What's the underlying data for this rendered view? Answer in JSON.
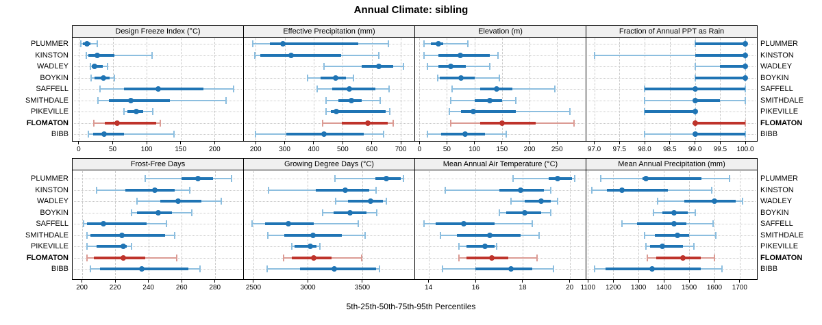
{
  "title": "Annual Climate: sibling",
  "caption": "5th-25th-50th-75th-95th Percentiles",
  "series_labels": [
    "PLUMMER",
    "KINSTON",
    "WADLEY",
    "BOYKIN",
    "SAFFELL",
    "SMITHDALE",
    "PIKEVILLE",
    "FLOMATON",
    "BIBB"
  ],
  "highlight_series": "FLOMATON",
  "percentile_labels": [
    "5th",
    "25th",
    "50th",
    "75th",
    "95th"
  ],
  "colors": {
    "series": "#1F74B4",
    "series_light": "#8CBEDF",
    "highlight": "#BE332B",
    "highlight_light": "#DB9B94",
    "header_bg": "#F0F0F0",
    "grid": "#C9C9C9",
    "border": "#000000",
    "text": "#000000"
  },
  "chart_data": {
    "type": "dot-whisker",
    "layout": "2 rows x 4 columns lattice, free x scales, 9 shared series rows, grid on, legend none",
    "panels": [
      {
        "title": "Design Freeze Index (°C)",
        "xlim": [
          -10,
          242
        ],
        "tick_values": [
          0,
          50,
          100,
          150,
          200
        ],
        "tick_labels": [
          "0",
          "50",
          "100",
          "150",
          "200"
        ],
        "percentiles": [
          [
            3,
            6,
            12,
            17,
            27
          ],
          [
            11,
            14,
            27,
            53,
            108
          ],
          [
            17,
            19,
            23,
            35,
            42
          ],
          [
            18,
            23,
            36,
            45,
            52
          ],
          [
            31,
            67,
            117,
            184,
            228
          ],
          [
            28,
            44,
            77,
            134,
            217
          ],
          [
            67,
            72,
            85,
            95,
            109
          ],
          [
            22,
            38,
            57,
            114,
            120
          ],
          [
            14,
            21,
            37,
            67,
            140
          ]
        ]
      },
      {
        "title": "Effective Precipitation (mm)",
        "xlim": [
          157,
          747
        ],
        "tick_values": [
          200,
          300,
          400,
          500,
          600,
          700
        ],
        "tick_labels": [
          "200",
          "300",
          "400",
          "500",
          "600",
          "700"
        ],
        "percentiles": [
          [
            190,
            249,
            294,
            553,
            658
          ],
          [
            196,
            216,
            322,
            494,
            624
          ],
          [
            435,
            565,
            624,
            675,
            710
          ],
          [
            380,
            424,
            475,
            510,
            537
          ],
          [
            412,
            463,
            522,
            612,
            659
          ],
          [
            443,
            486,
            530,
            565,
            628
          ],
          [
            443,
            459,
            479,
            647,
            663
          ],
          [
            431,
            498,
            587,
            655,
            675
          ],
          [
            200,
            306,
            435,
            573,
            640
          ]
        ]
      },
      {
        "title": "Elevation (m)",
        "xlim": [
          -9,
          302
        ],
        "tick_values": [
          0,
          50,
          100,
          150,
          200,
          250
        ],
        "tick_labels": [
          "0",
          "50",
          "100",
          "150",
          "200",
          "250"
        ],
        "percentiles": [
          [
            8,
            21,
            34,
            43,
            88
          ],
          [
            8,
            34,
            74,
            128,
            143
          ],
          [
            15,
            34,
            57,
            84,
            128
          ],
          [
            33,
            37,
            75,
            101,
            145
          ],
          [
            59,
            111,
            140,
            169,
            246
          ],
          [
            57,
            101,
            128,
            150,
            175
          ],
          [
            55,
            76,
            98,
            175,
            273
          ],
          [
            57,
            111,
            150,
            211,
            281
          ],
          [
            15,
            39,
            83,
            119,
            158
          ]
        ]
      },
      {
        "title": "Fraction of Annual PPT as Rain",
        "xlim": [
          96.83,
          100.23
        ],
        "tick_values": [
          97.0,
          97.5,
          98.0,
          98.5,
          99.0,
          99.5,
          100.0
        ],
        "tick_labels": [
          "97.0",
          "97.5",
          "98.0",
          "98.5",
          "99.0",
          "99.5",
          "100.0"
        ],
        "percentiles": [
          [
            99.0,
            99.0,
            100.0,
            100.0,
            100.0
          ],
          [
            97.0,
            99.0,
            100.0,
            100.0,
            100.0
          ],
          [
            99.0,
            99.5,
            100.0,
            100.0,
            100.0
          ],
          [
            99.0,
            99.0,
            100.0,
            100.0,
            100.0
          ],
          [
            98.0,
            98.0,
            99.0,
            100.0,
            100.0
          ],
          [
            98.0,
            99.0,
            99.0,
            99.5,
            100.0
          ],
          [
            98.0,
            98.0,
            99.0,
            99.0,
            99.0
          ],
          [
            99.0,
            99.0,
            99.0,
            100.0,
            100.0
          ],
          [
            98.0,
            99.0,
            99.0,
            100.0,
            100.0
          ]
        ]
      },
      {
        "title": "Frost-Free Days",
        "xlim": [
          194,
          297
        ],
        "tick_values": [
          200,
          220,
          240,
          260,
          280
        ],
        "tick_labels": [
          "200",
          "220",
          "240",
          "260",
          "280"
        ],
        "percentiles": [
          [
            238,
            260,
            270,
            279,
            290
          ],
          [
            209,
            226,
            244,
            256,
            265
          ],
          [
            233,
            247,
            258,
            272,
            284
          ],
          [
            230,
            233,
            246,
            254,
            266
          ],
          [
            201,
            203,
            213,
            239,
            251
          ],
          [
            203,
            205,
            224,
            250,
            256
          ],
          [
            203,
            209,
            225,
            227,
            230
          ],
          [
            203,
            207,
            225,
            238,
            257
          ],
          [
            205,
            211,
            236,
            264,
            271
          ]
        ]
      },
      {
        "title": "Growing Degree Days (°C)",
        "xlim": [
          2406,
          3978
        ],
        "tick_values": [
          2500,
          3000,
          3500
        ],
        "tick_labels": [
          "2500",
          "3000",
          "3500"
        ],
        "percentiles": [
          [
            3250,
            3620,
            3720,
            3850,
            3880
          ],
          [
            2640,
            3070,
            3340,
            3560,
            3625
          ],
          [
            3255,
            3365,
            3575,
            3690,
            3720
          ],
          [
            3135,
            3235,
            3385,
            3540,
            3630
          ],
          [
            2485,
            2605,
            2820,
            3055,
            3460
          ],
          [
            2630,
            2785,
            3050,
            3310,
            3525
          ],
          [
            2855,
            2880,
            3020,
            3080,
            3110
          ],
          [
            2780,
            2855,
            3055,
            3215,
            3495
          ],
          [
            2625,
            2925,
            3240,
            3625,
            3660
          ]
        ]
      },
      {
        "title": "Mean Annual Air Temperature (°C)",
        "xlim": [
          13.4,
          20.68
        ],
        "tick_values": [
          14,
          16,
          18,
          20
        ],
        "tick_labels": [
          "14",
          "16",
          "18",
          "20"
        ],
        "percentiles": [
          [
            17.6,
            19.1,
            19.5,
            20.1,
            20.2
          ],
          [
            14.7,
            17.0,
            17.9,
            18.9,
            19.2
          ],
          [
            17.5,
            18.1,
            18.8,
            19.2,
            19.5
          ],
          [
            17.0,
            17.3,
            18.1,
            18.8,
            19.2
          ],
          [
            13.8,
            14.3,
            15.5,
            16.8,
            18.4
          ],
          [
            14.5,
            15.2,
            16.6,
            17.9,
            18.7
          ],
          [
            15.3,
            15.6,
            16.4,
            16.8,
            16.9
          ],
          [
            15.3,
            15.6,
            16.7,
            17.4,
            18.6
          ],
          [
            14.6,
            16.0,
            17.5,
            18.4,
            19.3
          ]
        ]
      },
      {
        "title": "Mean Annual Precipitation (mm)",
        "xlim": [
          1091,
          1768
        ],
        "tick_values": [
          1100,
          1200,
          1300,
          1400,
          1500,
          1600,
          1700
        ],
        "tick_labels": [
          "1100",
          "1200",
          "1300",
          "1400",
          "1500",
          "1600",
          "1700"
        ],
        "percentiles": [
          [
            1150,
            1315,
            1330,
            1550,
            1660
          ],
          [
            1115,
            1175,
            1235,
            1415,
            1590
          ],
          [
            1375,
            1480,
            1600,
            1685,
            1710
          ],
          [
            1360,
            1395,
            1440,
            1495,
            1525
          ],
          [
            1235,
            1295,
            1440,
            1490,
            1595
          ],
          [
            1325,
            1365,
            1455,
            1500,
            1605
          ],
          [
            1330,
            1345,
            1395,
            1475,
            1520
          ],
          [
            1335,
            1370,
            1475,
            1545,
            1600
          ],
          [
            1125,
            1170,
            1355,
            1545,
            1630
          ]
        ]
      }
    ]
  }
}
